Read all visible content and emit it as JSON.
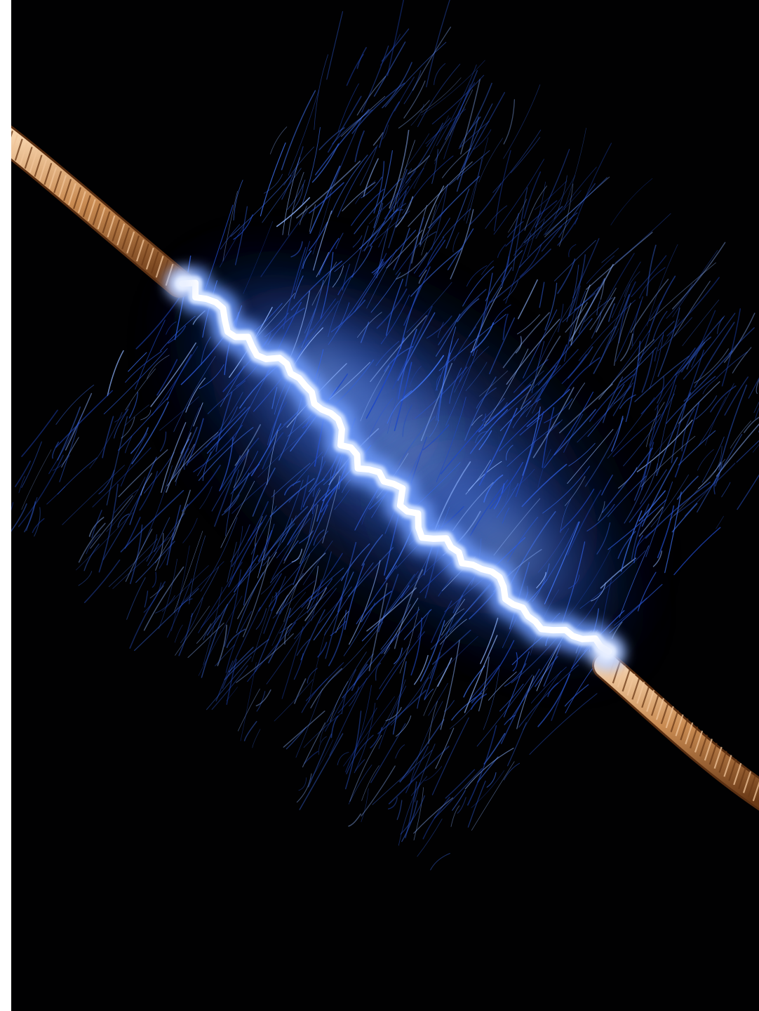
{
  "photo": {
    "subject": "electric-arc-between-copper-wires",
    "colors": {
      "background": "#010102",
      "frame": "#ffffff",
      "arc_core": "#ffffff",
      "arc_glow": "#5a8cff",
      "sparks": "#2f5fe0",
      "spark_highlight": "#8fb4ff",
      "copper_light": "#f0c49a",
      "copper_mid": "#c98b52",
      "copper_dark": "#6b3a17"
    }
  }
}
